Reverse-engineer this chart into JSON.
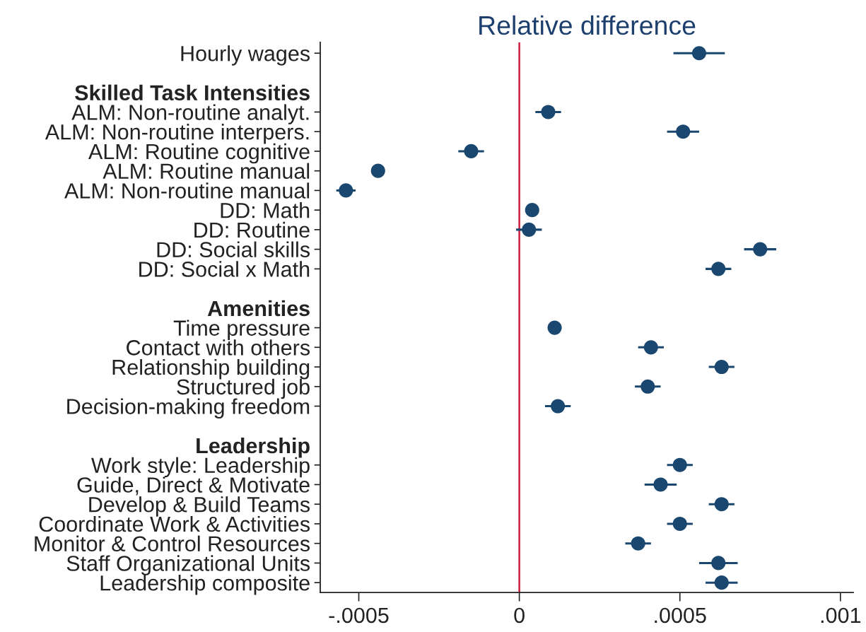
{
  "chart_data": {
    "type": "scatter",
    "orientation": "horizontal",
    "title": "Relative difference",
    "categories": [
      "Hourly wages",
      null,
      "Skilled Task Intensities",
      "ALM: Non-routine analyt.",
      "ALM: Non-routine interpers.",
      "ALM: Routine cognitive",
      "ALM: Routine manual",
      "ALM: Non-routine manual",
      "DD: Math",
      "DD: Routine",
      "DD: Social skills",
      "DD: Social x Math",
      null,
      "Amenities",
      "Time pressure",
      "Contact with others",
      "Relationship building",
      "Structured job",
      "Decision-making freedom",
      null,
      "Leadership",
      "Work style: Leadership",
      "Guide, Direct & Motivate",
      "Develop & Build Teams",
      "Coordinate Work & Activities",
      "Monitor & Control Resources",
      "Staff Organizational Units",
      "Leadership composite"
    ],
    "values": [
      0.00056,
      null,
      null,
      9e-05,
      0.00051,
      -0.00015,
      -0.00044,
      -0.00054,
      4e-05,
      3e-05,
      0.00075,
      0.00062,
      null,
      null,
      0.00011,
      0.00041,
      0.00063,
      0.0004,
      0.00012,
      null,
      null,
      0.0005,
      0.00044,
      0.00063,
      0.0005,
      0.00037,
      0.00062,
      0.00063
    ],
    "errors": [
      8e-05,
      null,
      null,
      4e-05,
      5e-05,
      4e-05,
      null,
      3e-05,
      null,
      4e-05,
      5e-05,
      4e-05,
      null,
      null,
      null,
      4e-05,
      4e-05,
      4e-05,
      4e-05,
      null,
      null,
      4e-05,
      5e-05,
      4e-05,
      4e-05,
      4e-05,
      6e-05,
      5e-05
    ],
    "color": "#1a476f",
    "marker": "circle",
    "xlim": [
      -0.00062,
      0.00104
    ],
    "xticks": [
      {
        "value": -0.0005,
        "label": "-.0005"
      },
      0,
      {
        "value": 0.0005,
        "label": ".0005"
      },
      {
        "value": 0.001,
        "label": ".001"
      }
    ],
    "ref_lines": [
      {
        "axis": "x",
        "value": 0,
        "color": "#cc1f3f"
      }
    ]
  }
}
